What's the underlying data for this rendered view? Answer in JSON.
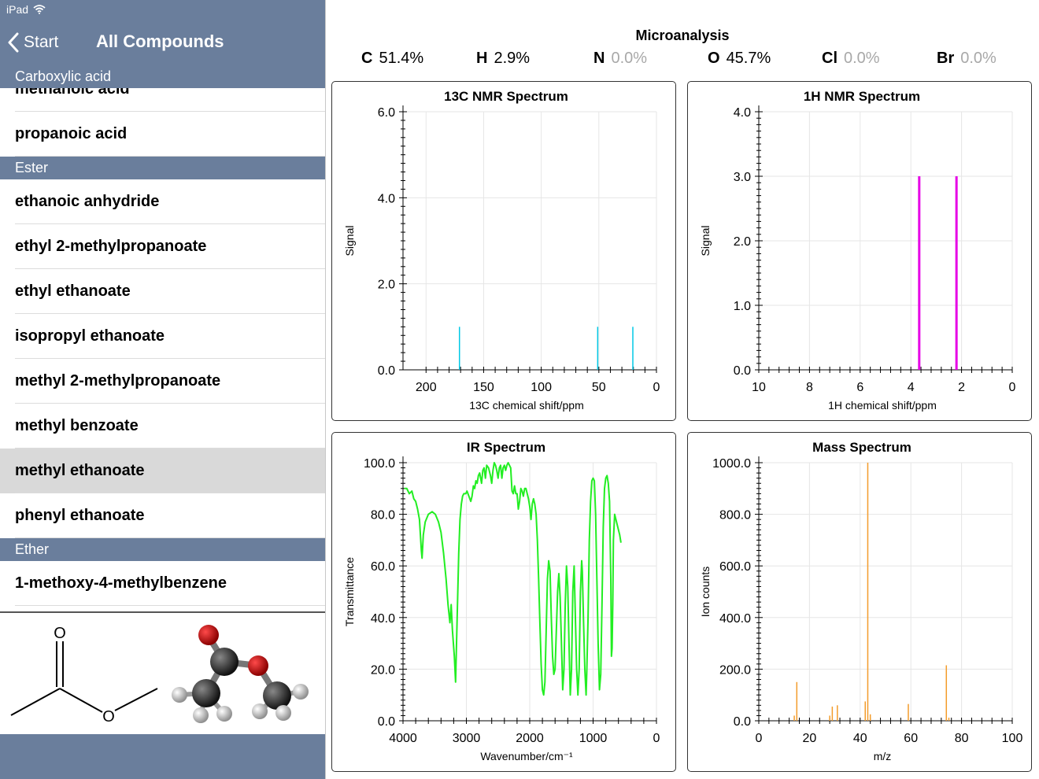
{
  "status": {
    "device": "iPad",
    "wifi_icon": "wifi-icon"
  },
  "nav": {
    "back_label": "Start",
    "title": "All Compounds"
  },
  "list": {
    "sections": [
      {
        "header": "Carboxylic acid",
        "items": [
          "methanoic acid",
          "propanoic acid"
        ]
      },
      {
        "header": "Ester",
        "items": [
          "ethanoic anhydride",
          "ethyl 2-methylpropanoate",
          "ethyl ethanoate",
          "isopropyl ethanoate",
          "methyl 2-methylpropanoate",
          "methyl benzoate",
          "methyl ethanoate",
          "phenyl ethanoate"
        ]
      },
      {
        "header": "Ether",
        "items": [
          "1-methoxy-4-methylbenzene"
        ]
      }
    ],
    "selected": "methyl ethanoate"
  },
  "structure": {
    "atom_o": "O"
  },
  "microanalysis": {
    "title": "Microanalysis",
    "items": [
      {
        "el": "C",
        "pct": "51.4%"
      },
      {
        "el": "H",
        "pct": "2.9%"
      },
      {
        "el": "N",
        "pct": "0.0%"
      },
      {
        "el": "O",
        "pct": "45.7%"
      },
      {
        "el": "Cl",
        "pct": "0.0%"
      },
      {
        "el": "Br",
        "pct": "0.0%"
      }
    ]
  },
  "chart_data": [
    {
      "id": "c13",
      "type": "line",
      "title": "13C NMR Spectrum",
      "xlabel": "13C chemical shift/ppm",
      "ylabel": "Signal",
      "xlim": [
        220,
        0
      ],
      "ylim": [
        0,
        6
      ],
      "xticks": [
        200,
        150,
        100,
        50,
        0
      ],
      "yticks": [
        "0.0",
        "2.0",
        "4.0",
        "6.0"
      ],
      "color": "#00c8e6",
      "peaks": [
        [
          171,
          1.0
        ],
        [
          51,
          1.0
        ],
        [
          20.5,
          1.0
        ]
      ]
    },
    {
      "id": "h1",
      "type": "line",
      "title": "1H NMR Spectrum",
      "xlabel": "1H chemical shift/ppm",
      "ylabel": "Signal",
      "xlim": [
        10,
        0
      ],
      "ylim": [
        0,
        4
      ],
      "xticks": [
        10,
        8,
        6,
        4,
        2,
        0
      ],
      "yticks": [
        "0.0",
        "1.0",
        "2.0",
        "3.0",
        "4.0"
      ],
      "color": "#e600e6",
      "peaks": [
        [
          3.67,
          3.0
        ],
        [
          2.2,
          3.0
        ]
      ]
    },
    {
      "id": "ir",
      "type": "line",
      "title": "IR Spectrum",
      "xlabel": "Wavenumber/cm⁻¹",
      "ylabel": "Transmittance",
      "xlim": [
        4000,
        0
      ],
      "ylim": [
        0,
        100
      ],
      "xticks": [
        4000,
        3000,
        2000,
        1000,
        0
      ],
      "yticks": [
        "0.0",
        "20.0",
        "40.0",
        "60.0",
        "80.0",
        "100.0"
      ],
      "color": "#22ee22",
      "points": [
        [
          3980,
          90
        ],
        [
          3940,
          90
        ],
        [
          3900,
          88
        ],
        [
          3860,
          89
        ],
        [
          3830,
          86
        ],
        [
          3800,
          85
        ],
        [
          3770,
          82
        ],
        [
          3740,
          78
        ],
        [
          3710,
          66
        ],
        [
          3700,
          63
        ],
        [
          3680,
          72
        ],
        [
          3650,
          77
        ],
        [
          3600,
          80
        ],
        [
          3540,
          81
        ],
        [
          3490,
          80
        ],
        [
          3440,
          77
        ],
        [
          3400,
          73
        ],
        [
          3360,
          65
        ],
        [
          3320,
          55
        ],
        [
          3290,
          45
        ],
        [
          3260,
          38
        ],
        [
          3240,
          45
        ],
        [
          3220,
          35
        ],
        [
          3190,
          25
        ],
        [
          3170,
          15
        ],
        [
          3160,
          25
        ],
        [
          3140,
          45
        ],
        [
          3120,
          65
        ],
        [
          3100,
          78
        ],
        [
          3080,
          84
        ],
        [
          3060,
          87
        ],
        [
          3040,
          88
        ],
        [
          3010,
          88
        ],
        [
          2990,
          89
        ],
        [
          2960,
          87
        ],
        [
          2930,
          85
        ],
        [
          2910,
          87
        ],
        [
          2890,
          91
        ],
        [
          2870,
          90
        ],
        [
          2850,
          93
        ],
        [
          2830,
          92
        ],
        [
          2810,
          95
        ],
        [
          2790,
          96
        ],
        [
          2760,
          92
        ],
        [
          2740,
          97
        ],
        [
          2720,
          98
        ],
        [
          2700,
          94
        ],
        [
          2680,
          99
        ],
        [
          2650,
          98
        ],
        [
          2620,
          95
        ],
        [
          2600,
          92
        ],
        [
          2580,
          97
        ],
        [
          2560,
          100
        ],
        [
          2540,
          99
        ],
        [
          2520,
          97
        ],
        [
          2500,
          94
        ],
        [
          2480,
          98
        ],
        [
          2460,
          99
        ],
        [
          2440,
          94
        ],
        [
          2420,
          98
        ],
        [
          2400,
          99
        ],
        [
          2380,
          97
        ],
        [
          2360,
          99
        ],
        [
          2340,
          100
        ],
        [
          2320,
          99
        ],
        [
          2300,
          98
        ],
        [
          2280,
          89
        ],
        [
          2260,
          88
        ],
        [
          2240,
          91
        ],
        [
          2220,
          88
        ],
        [
          2200,
          88
        ],
        [
          2180,
          82
        ],
        [
          2160,
          85
        ],
        [
          2140,
          90
        ],
        [
          2120,
          89
        ],
        [
          2100,
          87
        ],
        [
          2080,
          90
        ],
        [
          2060,
          90
        ],
        [
          2040,
          88
        ],
        [
          2020,
          86
        ],
        [
          2000,
          83
        ],
        [
          1980,
          78
        ],
        [
          1960,
          84
        ],
        [
          1940,
          86
        ],
        [
          1920,
          84
        ],
        [
          1900,
          80
        ],
        [
          1880,
          70
        ],
        [
          1860,
          55
        ],
        [
          1840,
          38
        ],
        [
          1820,
          22
        ],
        [
          1800,
          12
        ],
        [
          1780,
          10
        ],
        [
          1760,
          15
        ],
        [
          1740,
          35
        ],
        [
          1720,
          55
        ],
        [
          1700,
          62
        ],
        [
          1680,
          58
        ],
        [
          1660,
          40
        ],
        [
          1640,
          25
        ],
        [
          1620,
          18
        ],
        [
          1600,
          20
        ],
        [
          1580,
          35
        ],
        [
          1560,
          50
        ],
        [
          1540,
          57
        ],
        [
          1520,
          48
        ],
        [
          1500,
          30
        ],
        [
          1480,
          12
        ],
        [
          1460,
          20
        ],
        [
          1440,
          45
        ],
        [
          1420,
          60
        ],
        [
          1400,
          52
        ],
        [
          1380,
          30
        ],
        [
          1360,
          10
        ],
        [
          1340,
          20
        ],
        [
          1320,
          50
        ],
        [
          1300,
          60
        ],
        [
          1280,
          40
        ],
        [
          1260,
          20
        ],
        [
          1240,
          10
        ],
        [
          1220,
          20
        ],
        [
          1200,
          50
        ],
        [
          1180,
          62
        ],
        [
          1170,
          58
        ],
        [
          1150,
          38
        ],
        [
          1130,
          20
        ],
        [
          1110,
          10
        ],
        [
          1100,
          18
        ],
        [
          1080,
          40
        ],
        [
          1060,
          70
        ],
        [
          1040,
          85
        ],
        [
          1020,
          93
        ],
        [
          1000,
          94
        ],
        [
          980,
          93
        ],
        [
          960,
          80
        ],
        [
          940,
          55
        ],
        [
          920,
          30
        ],
        [
          900,
          12
        ],
        [
          880,
          18
        ],
        [
          860,
          45
        ],
        [
          840,
          75
        ],
        [
          820,
          90
        ],
        [
          800,
          94
        ],
        [
          780,
          95
        ],
        [
          760,
          92
        ],
        [
          740,
          85
        ],
        [
          720,
          55
        ],
        [
          710,
          25
        ],
        [
          700,
          28
        ],
        [
          690,
          45
        ],
        [
          680,
          70
        ],
        [
          660,
          80
        ],
        [
          640,
          78
        ],
        [
          620,
          76
        ],
        [
          600,
          74
        ],
        [
          580,
          72
        ],
        [
          560,
          69
        ]
      ]
    },
    {
      "id": "ms",
      "type": "bar",
      "title": "Mass Spectrum",
      "xlabel": "m/z",
      "ylabel": "Ion counts",
      "xlim": [
        0,
        100
      ],
      "ylim": [
        0,
        1000
      ],
      "xticks": [
        0,
        20,
        40,
        60,
        80,
        100
      ],
      "yticks": [
        "0.0",
        "200.0",
        "400.0",
        "600.0",
        "800.0",
        "1000.0"
      ],
      "color": "#f39c2b",
      "peaks": [
        [
          14,
          20
        ],
        [
          15,
          150
        ],
        [
          28,
          20
        ],
        [
          29,
          55
        ],
        [
          31,
          60
        ],
        [
          42,
          75
        ],
        [
          43,
          1000
        ],
        [
          44,
          25
        ],
        [
          59,
          65
        ],
        [
          74,
          215
        ],
        [
          75,
          12
        ]
      ]
    }
  ]
}
